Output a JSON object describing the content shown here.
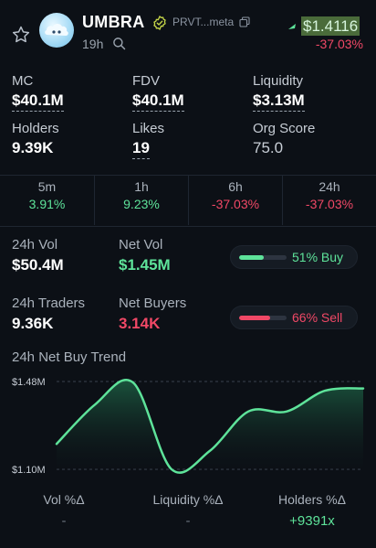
{
  "token": {
    "name": "UMBRA",
    "contract": "PRVT...meta",
    "age": "19h",
    "price": "$1.4116",
    "price_change": "-37.03%"
  },
  "stats": [
    {
      "label": "MC",
      "value": "$40.1M"
    },
    {
      "label": "FDV",
      "value": "$40.1M"
    },
    {
      "label": "Liquidity",
      "value": "$3.13M"
    },
    {
      "label": "Holders",
      "value": "9.39K"
    },
    {
      "label": "Likes",
      "value": "19"
    },
    {
      "label": "Org Score",
      "value": "75.0"
    }
  ],
  "timeframes": [
    {
      "label": "5m",
      "value": "3.91%",
      "direction": "up"
    },
    {
      "label": "1h",
      "value": "9.23%",
      "direction": "up"
    },
    {
      "label": "6h",
      "value": "-37.03%",
      "direction": "down"
    },
    {
      "label": "24h",
      "value": "-37.03%",
      "direction": "down"
    }
  ],
  "activity": {
    "vol_label": "24h Vol",
    "vol_value": "$50.4M",
    "net_vol_label": "Net Vol",
    "net_vol_value": "$1.45M",
    "buy_pill": "51% Buy",
    "buy_fraction": 0.51,
    "traders_label": "24h Traders",
    "traders_value": "9.36K",
    "net_buyers_label": "Net Buyers",
    "net_buyers_value": "3.14K",
    "sell_pill": "66% Sell",
    "sell_fraction": 0.66
  },
  "trend": {
    "title": "24h Net Buy Trend"
  },
  "chart_data": {
    "type": "area",
    "title": "24h Net Buy Trend",
    "y_tick_labels": [
      "$1.48M",
      "$1.10M"
    ],
    "ylim": [
      1.1,
      1.48
    ],
    "x": [
      0,
      1,
      2,
      3,
      4,
      5,
      6,
      7,
      8
    ],
    "values": [
      1.21,
      1.38,
      1.475,
      1.1,
      1.18,
      1.35,
      1.35,
      1.44,
      1.45
    ],
    "grid": false,
    "line_color": "#5ee39a"
  },
  "changes": [
    {
      "label": "Vol %Δ",
      "value": "-"
    },
    {
      "label": "Liquidity %Δ",
      "value": "-"
    },
    {
      "label": "Holders %Δ",
      "value": "+9391x"
    }
  ],
  "colors": {
    "positive": "#5ee39a",
    "negative": "#f04866",
    "background": "#0c1016"
  },
  "icons": [
    "star-icon",
    "verified-badge-icon",
    "copy-icon",
    "search-icon",
    "price-up-arrow-icon"
  ]
}
